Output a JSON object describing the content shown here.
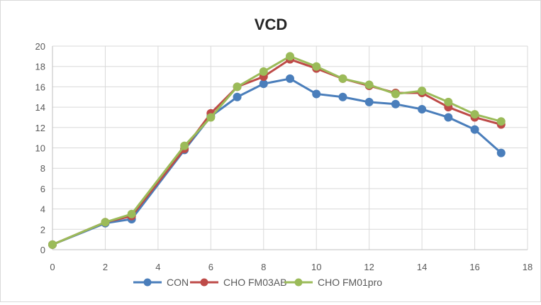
{
  "chart_data": {
    "type": "line",
    "title": "VCD",
    "xlabel": "",
    "ylabel": "",
    "xlim": [
      0,
      18
    ],
    "ylim": [
      0,
      20
    ],
    "x_ticks": [
      0,
      2,
      4,
      6,
      8,
      10,
      12,
      14,
      16,
      18
    ],
    "y_ticks": [
      0,
      2,
      4,
      6,
      8,
      10,
      12,
      14,
      16,
      18,
      20
    ],
    "grid": true,
    "legend_position": "bottom",
    "x": [
      0,
      2,
      3,
      5,
      6,
      7,
      8,
      9,
      10,
      11,
      12,
      13,
      14,
      15,
      16,
      17
    ],
    "series": [
      {
        "name": "CON",
        "color": "#4a7ebb",
        "values": [
          0.5,
          2.6,
          3.0,
          9.8,
          13.1,
          15.0,
          16.3,
          16.8,
          15.3,
          15.0,
          14.5,
          14.3,
          13.8,
          13.0,
          11.8,
          9.5
        ]
      },
      {
        "name": "CHO FM03AB",
        "color": "#be4b48",
        "values": [
          0.5,
          2.7,
          3.3,
          9.9,
          13.4,
          16.0,
          17.0,
          18.7,
          17.8,
          16.8,
          16.1,
          15.4,
          15.4,
          14.0,
          13.0,
          12.3
        ]
      },
      {
        "name": "CHO FM01pro",
        "color": "#9bbb59",
        "values": [
          0.5,
          2.7,
          3.5,
          10.2,
          13.0,
          16.0,
          17.5,
          19.0,
          18.0,
          16.8,
          16.2,
          15.3,
          15.6,
          14.5,
          13.3,
          12.6
        ]
      }
    ]
  }
}
